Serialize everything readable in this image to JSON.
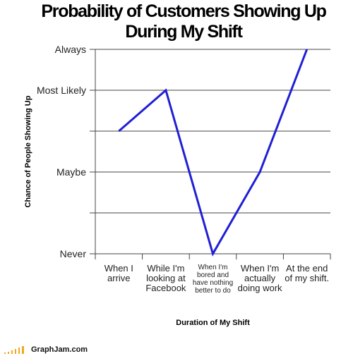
{
  "chart_data": {
    "type": "line",
    "title": "Probability of Customers Showing Up During My Shift",
    "x_label": "Duration of My Shift",
    "y_label": "Chance of People Showing Up",
    "categories": [
      "When I arrive",
      "While I'm looking at Facebook",
      "When I'm bored and have nothing better to do",
      "When I'm actually doing work",
      "At the end of my shift."
    ],
    "values": [
      3,
      4,
      0,
      2,
      5
    ],
    "color": "#1f1fd6",
    "ylim": [
      0,
      5
    ],
    "yticks": [
      {
        "value": 0,
        "label": "Never"
      },
      {
        "value": 1,
        "label": null
      },
      {
        "value": 2,
        "label": "Maybe"
      },
      {
        "value": 3,
        "label": null
      },
      {
        "value": 4,
        "label": "Most Likely"
      },
      {
        "value": 5,
        "label": "Always"
      }
    ],
    "grid": true
  },
  "footer": "GraphJam.com"
}
